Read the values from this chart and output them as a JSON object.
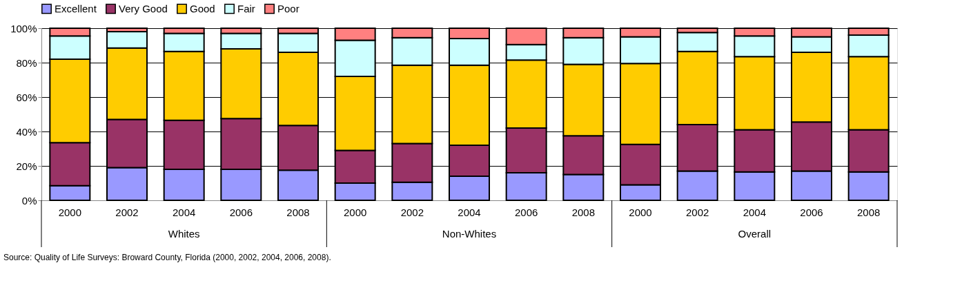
{
  "chart_data": {
    "type": "bar",
    "stacked": true,
    "categories": [
      "2000",
      "2002",
      "2004",
      "2006",
      "2008",
      "2000",
      "2002",
      "2004",
      "2006",
      "2008",
      "2000",
      "2002",
      "2004",
      "2006",
      "2008"
    ],
    "series": [
      {
        "name": "Excellent",
        "color": "#9999ff",
        "values": [
          8.5,
          19,
          18,
          18,
          17.5,
          10,
          10.5,
          14,
          16,
          15,
          9,
          17,
          16.5,
          17,
          16.5
        ]
      },
      {
        "name": "Very Good",
        "color": "#993366",
        "values": [
          25,
          28,
          28.5,
          29.5,
          26,
          19,
          22.5,
          18,
          26,
          22.5,
          23.5,
          27,
          24.5,
          28.5,
          24.5
        ]
      },
      {
        "name": "Good",
        "color": "#ffcc00",
        "values": [
          48.5,
          41.5,
          40,
          40.5,
          42.5,
          43,
          45.5,
          46.5,
          39.5,
          41.5,
          47,
          42.5,
          42.5,
          40.5,
          42.5
        ]
      },
      {
        "name": "Fair",
        "color": "#ccffff",
        "values": [
          13.5,
          9.5,
          10.5,
          9,
          11,
          21,
          16,
          15.5,
          9,
          15.5,
          15.5,
          11,
          12,
          9,
          12.5
        ]
      },
      {
        "name": "Poor",
        "color": "#ff8080",
        "values": [
          4.5,
          2,
          3,
          3,
          3,
          7,
          5.5,
          6,
          9.5,
          5.5,
          5,
          2.5,
          4.5,
          5,
          4
        ]
      }
    ],
    "ylim": [
      0,
      100
    ],
    "yticks": [
      {
        "value": 0,
        "label": "0%"
      },
      {
        "value": 20,
        "label": "20%"
      },
      {
        "value": 40,
        "label": "40%"
      },
      {
        "value": 60,
        "label": "60%"
      },
      {
        "value": 80,
        "label": "80%"
      },
      {
        "value": 100,
        "label": "100%"
      }
    ],
    "grid": "y",
    "legend": "top",
    "annotations": [
      "Whites",
      "Non-Whites",
      "Overall",
      "Source:  Quality of Life Surveys:  Broward County, Florida (2000, 2002, 2004, 2006, 2008)."
    ]
  }
}
